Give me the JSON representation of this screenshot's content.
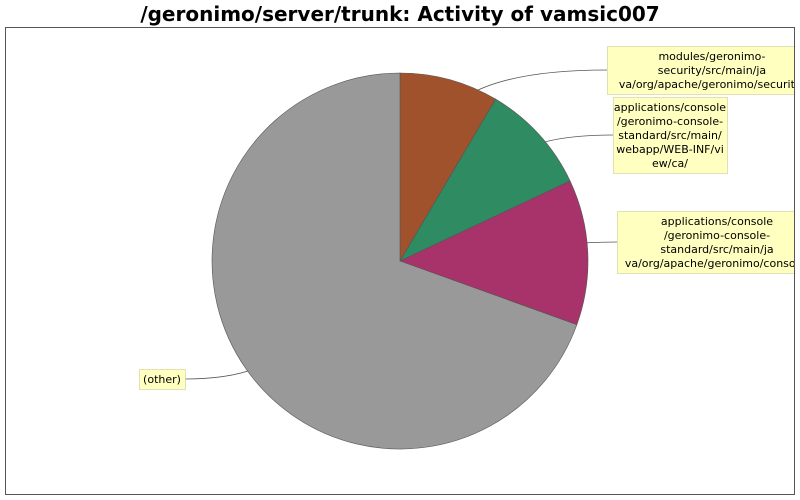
{
  "chart_data": {
    "type": "pie",
    "title": "/geronimo/server/trunk: Activity of vamsic007",
    "slices": [
      {
        "label": "modules/geronimo-security/src/main/java/org/apache/geronimo/security/",
        "label_lines": [
          "modules/geronimo-",
          "security/src/main/ja",
          "va/org/apache/geronimo/security/"
        ],
        "value": 8.5,
        "color": "#a0522d"
      },
      {
        "label": "applications/console/geronimo-console-standard/src/main/webapp/WEB-INF/view/ca/",
        "label_lines": [
          "applications/console",
          "/geronimo-console-",
          "standard/src/main/",
          "webapp/WEB-INF/vi",
          "ew/ca/"
        ],
        "value": 9.5,
        "color": "#2e8b62"
      },
      {
        "label": "applications/console/geronimo-console-standard/src/main/java/org/apache/geronimo/console/",
        "label_lines": [
          "applications/console",
          "/geronimo-console-",
          "standard/src/main/ja",
          "va/org/apache/geronimo/console/"
        ],
        "value": 12.5,
        "color": "#a8336a"
      },
      {
        "label": "(other)",
        "label_lines": [
          "(other)"
        ],
        "value": 69.5,
        "color": "#999999"
      }
    ],
    "start_angle_deg": 0,
    "direction": "clockwise",
    "legend": "callout labels"
  }
}
